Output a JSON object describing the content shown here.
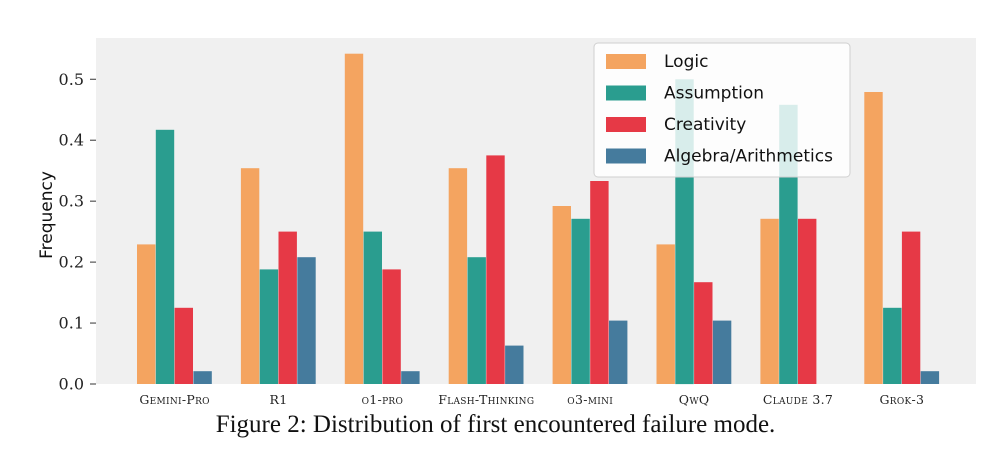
{
  "caption": "Figure 2: Distribution of first encountered failure mode.",
  "colors": {
    "plot_background": "#f0f0f0",
    "Logic": "#f4a460",
    "Assumption": "#2a9d8f",
    "Creativity": "#e63946",
    "Algebra/Arithmetics": "#457b9d"
  },
  "chart_data": {
    "type": "bar",
    "title": "",
    "xlabel": "",
    "ylabel": "Frequency",
    "ylim": [
      0,
      0.55
    ],
    "yticks": [
      "0.0",
      "0.1",
      "0.2",
      "0.3",
      "0.4",
      "0.5"
    ],
    "grid": false,
    "legend_position": "top-right",
    "categories": [
      "Gemini-Pro",
      "R1",
      "o1-pro",
      "Flash-Thinking",
      "o3-mini",
      "QwQ",
      "Claude 3.7",
      "Grok-3"
    ],
    "series": [
      {
        "name": "Logic",
        "values": [
          0.229,
          0.354,
          0.542,
          0.354,
          0.292,
          0.229,
          0.271,
          0.479
        ]
      },
      {
        "name": "Assumption",
        "values": [
          0.417,
          0.188,
          0.25,
          0.208,
          0.271,
          0.5,
          0.458,
          0.125
        ]
      },
      {
        "name": "Creativity",
        "values": [
          0.125,
          0.25,
          0.188,
          0.375,
          0.333,
          0.167,
          0.271,
          0.25
        ]
      },
      {
        "name": "Algebra/Arithmetics",
        "values": [
          0.021,
          0.208,
          0.021,
          0.063,
          0.104,
          0.104,
          0.0,
          0.021
        ]
      }
    ]
  }
}
